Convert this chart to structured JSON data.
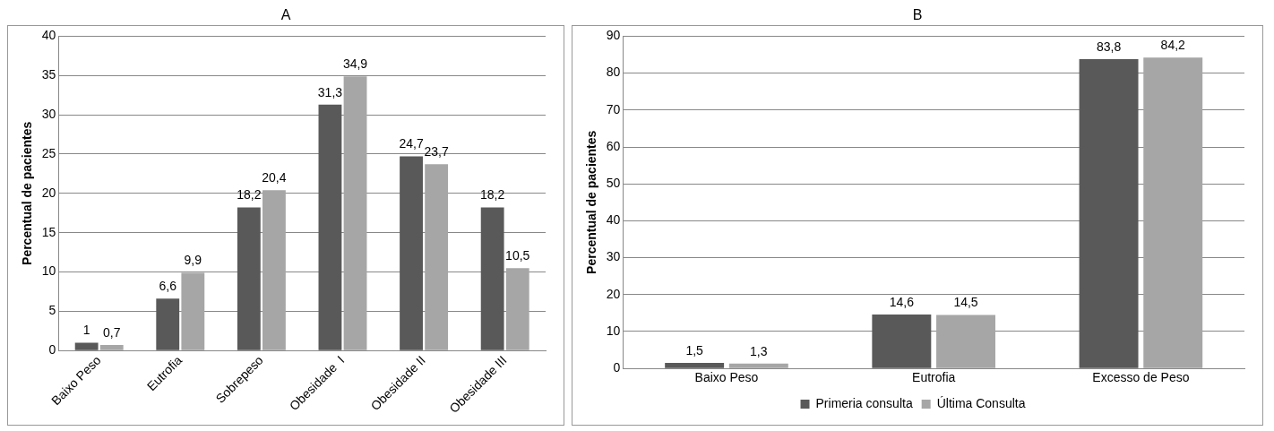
{
  "chart_data": [
    {
      "type": "bar",
      "title": "A",
      "ylabel": "Percentual de pacientes",
      "categories": [
        "Baixo Peso",
        "Eutrofia",
        "Sobrepeso",
        "Obesidade  I",
        "Obesidade II",
        "Obesidade III"
      ],
      "series": [
        {
          "color": "#595959",
          "values": [
            1,
            6.6,
            18.2,
            31.3,
            24.7,
            18.2
          ],
          "value_labels": [
            "1",
            "6,6",
            "18,2",
            "31,3",
            "24,7",
            "18,2"
          ]
        },
        {
          "color": "#a6a6a6",
          "values": [
            0.7,
            9.9,
            20.4,
            34.9,
            23.7,
            10.5
          ],
          "value_labels": [
            "0,7",
            "9,9",
            "20,4",
            "34,9",
            "23,7",
            "10,5"
          ]
        }
      ],
      "ylim": [
        0,
        40
      ],
      "yticks": [
        0,
        5,
        10,
        15,
        20,
        25,
        30,
        35,
        40
      ],
      "grid": "y",
      "legend": false
    },
    {
      "type": "bar",
      "title": "B",
      "ylabel": "Percentual de pacientes",
      "categories": [
        "Baixo Peso",
        "Eutrofia",
        "Excesso de Peso"
      ],
      "series": [
        {
          "name": "Primeria consulta",
          "color": "#595959",
          "values": [
            1.5,
            14.6,
            83.8
          ],
          "value_labels": [
            "1,5",
            "14,6",
            "83,8"
          ]
        },
        {
          "name": "Última Consulta",
          "color": "#a6a6a6",
          "values": [
            1.3,
            14.5,
            84.2
          ],
          "value_labels": [
            "1,3",
            "14,5",
            "84,2"
          ]
        }
      ],
      "ylim": [
        0,
        90
      ],
      "yticks": [
        0,
        10,
        20,
        30,
        40,
        50,
        60,
        70,
        80,
        90
      ],
      "grid": "y",
      "legend": "bottom"
    }
  ]
}
